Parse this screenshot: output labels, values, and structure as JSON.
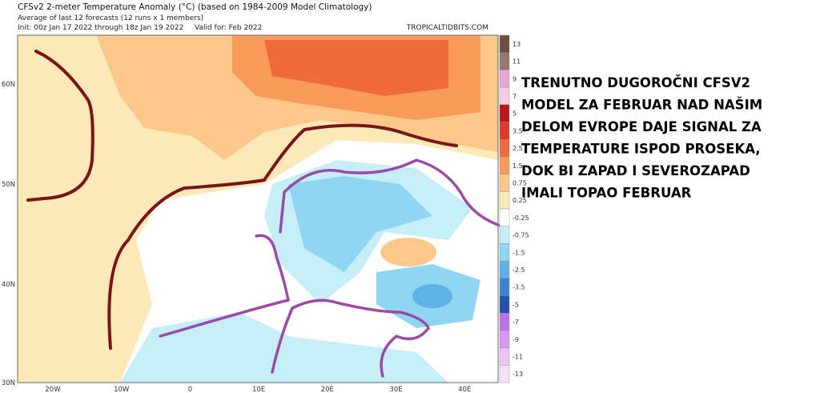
{
  "header": {
    "title": "CFSv2 2-meter Temperature Anomaly (°C) (based on 1984-2009 Model Climatology)",
    "subtitle": "Average of last 12 forecasts (12 runs x 1 members)",
    "init": "Init: 00z Jan 17 2022 through 18z Jan 19 2022",
    "valid": "Valid for: Feb 2022",
    "source": "TROPICALTIDBITS.COM"
  },
  "latitude_labels": [
    "60N",
    "50N",
    "40N",
    "30N"
  ],
  "longitude_labels": [
    "20W",
    "10W",
    "0",
    "10E",
    "20E",
    "30E",
    "40E"
  ],
  "colorbar": [
    {
      "label": "13",
      "color": "#6e4e42"
    },
    {
      "label": "11",
      "color": "#94786c"
    },
    {
      "label": "9",
      "color": "#e6a6d6"
    },
    {
      "label": "7",
      "color": "#f4cdea"
    },
    {
      "label": "5",
      "color": "#b8181c"
    },
    {
      "label": "3.5",
      "color": "#dc3a2c"
    },
    {
      "label": "2.5",
      "color": "#f06a3c"
    },
    {
      "label": "1.5",
      "color": "#f89a5a"
    },
    {
      "label": "0.75",
      "color": "#fcc88a"
    },
    {
      "label": "0.25",
      "color": "#fde9b8"
    },
    {
      "label": "-0.25",
      "color": "#ffffff"
    },
    {
      "label": "-0.75",
      "color": "#c6eef8"
    },
    {
      "label": "-1.5",
      "color": "#8ed6f2"
    },
    {
      "label": "-2.5",
      "color": "#5eb2e8"
    },
    {
      "label": "-3.5",
      "color": "#3c82d4"
    },
    {
      "label": "-5",
      "color": "#2450b0"
    },
    {
      "label": "-7",
      "color": "#c070e8"
    },
    {
      "label": "-9",
      "color": "#d898f0"
    },
    {
      "label": "-11",
      "color": "#ecc4f4"
    },
    {
      "label": "-13",
      "color": "#f6e0f8"
    }
  ],
  "annotation": [
    "TRENUTNO DUGOROČNI CFSV2",
    "MODEL ZA FEBRUAR NAD NAŠIM",
    "DELOM EVROPE DAJE SIGNAL ZA",
    "TEMPERATURE ISPOD PROSEKA,",
    "DOK BI ZAPAD I SEVEROZAPAD",
    "IMALI TOPAO FEBRUAR"
  ]
}
